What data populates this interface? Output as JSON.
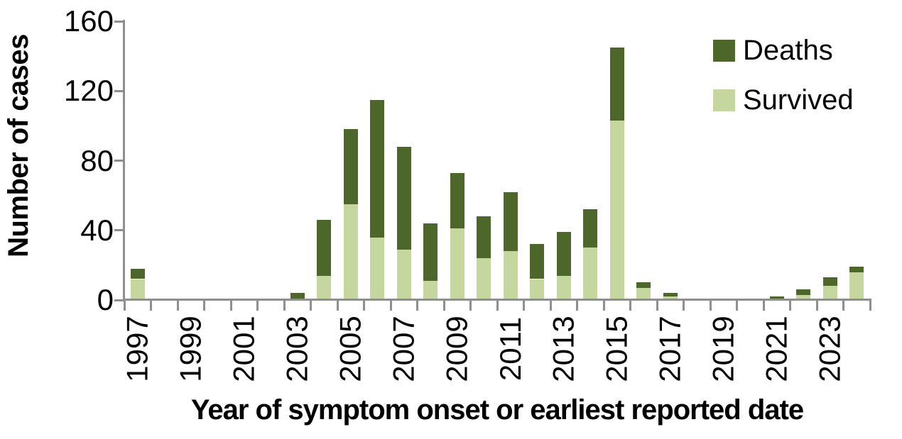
{
  "chart_data": {
    "type": "bar",
    "stacked": true,
    "title": "",
    "xlabel": "Year of symptom onset or earliest reported date",
    "ylabel": "Number of cases",
    "ylim": [
      0,
      160
    ],
    "yticks": [
      0,
      40,
      80,
      120,
      160
    ],
    "xtick_label_every": 2,
    "grid": false,
    "legend_position": "top-right",
    "axis_color": "#8f8f8f",
    "text_color": "#000000",
    "background": "#ffffff",
    "categories": [
      "1997",
      "1998",
      "1999",
      "2000",
      "2001",
      "2002",
      "2003",
      "2004",
      "2005",
      "2006",
      "2007",
      "2008",
      "2009",
      "2010",
      "2011",
      "2012",
      "2013",
      "2014",
      "2015",
      "2016",
      "2017",
      "2018",
      "2019",
      "2020",
      "2021",
      "2022",
      "2023",
      "2024"
    ],
    "stack_bottom_to_top": [
      "Survived",
      "Deaths"
    ],
    "series": [
      {
        "name": "Deaths",
        "color": "#4d672b",
        "values": [
          6,
          0,
          0,
          0,
          0,
          0,
          4,
          32,
          43,
          79,
          59,
          33,
          32,
          24,
          34,
          20,
          25,
          22,
          42,
          3,
          2,
          0,
          1,
          0,
          1,
          3,
          5,
          3
        ]
      },
      {
        "name": "Survived",
        "color": "#c5d79f",
        "values": [
          12,
          0,
          0,
          0,
          0,
          0,
          0,
          14,
          55,
          36,
          29,
          11,
          41,
          24,
          28,
          12,
          14,
          30,
          103,
          7,
          2,
          0,
          0,
          1,
          1,
          3,
          8,
          16
        ]
      }
    ]
  }
}
